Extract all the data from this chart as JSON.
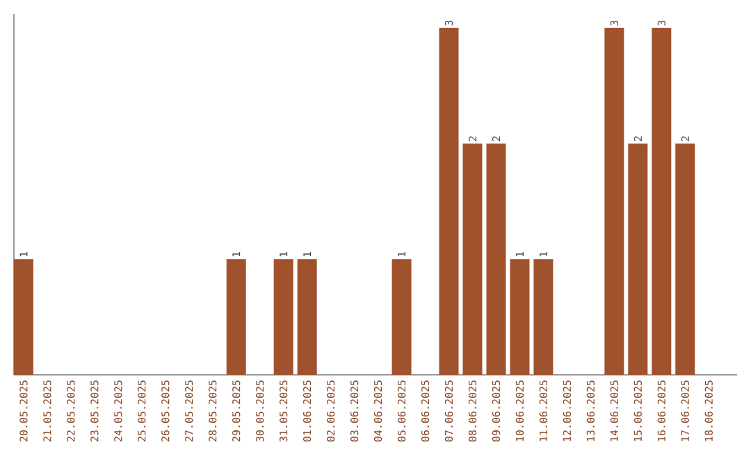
{
  "chart_data": {
    "type": "bar",
    "categories": [
      "20.05.2025",
      "21.05.2025",
      "22.05.2025",
      "23.05.2025",
      "24.05.2025",
      "25.05.2025",
      "26.05.2025",
      "27.05.2025",
      "28.05.2025",
      "29.05.2025",
      "30.05.2025",
      "31.05.2025",
      "01.06.2025",
      "02.06.2025",
      "03.06.2025",
      "04.06.2025",
      "05.06.2025",
      "06.06.2025",
      "07.06.2025",
      "08.06.2025",
      "09.06.2025",
      "10.06.2025",
      "11.06.2025",
      "12.06.2025",
      "13.06.2025",
      "14.06.2025",
      "15.06.2025",
      "16.06.2025",
      "17.06.2025",
      "18.06.2025"
    ],
    "values": [
      1,
      0,
      0,
      0,
      0,
      0,
      0,
      0,
      0,
      1,
      0,
      1,
      1,
      0,
      0,
      0,
      1,
      0,
      3,
      2,
      2,
      1,
      1,
      0,
      0,
      3,
      2,
      3,
      2,
      0
    ],
    "value_labels": [
      "1",
      null,
      null,
      null,
      null,
      null,
      null,
      null,
      null,
      "1",
      null,
      "1",
      "1",
      null,
      null,
      null,
      "1",
      null,
      "3",
      "2",
      "2",
      "1",
      "1",
      null,
      null,
      "3",
      "2",
      "3",
      "2",
      null
    ],
    "color": "#a0522d",
    "tick_labels": "x",
    "grid": false
  }
}
